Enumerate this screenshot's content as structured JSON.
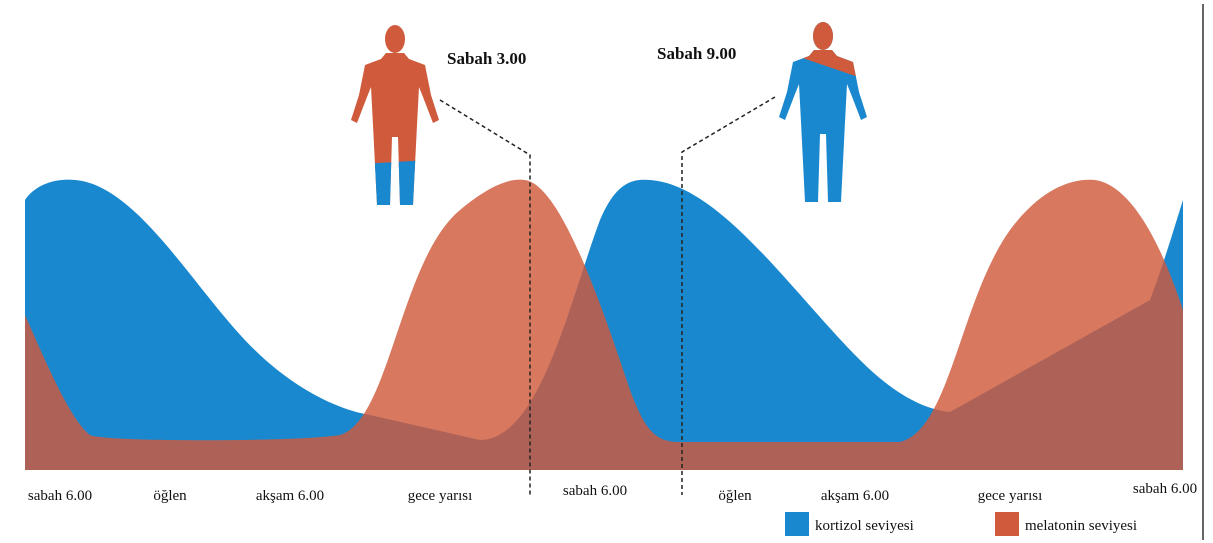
{
  "annotations": [
    "Sabah 3.00",
    "Sabah 9.00"
  ],
  "time_labels": [
    "sabah 6.00",
    "öğlen",
    "akşam 6.00",
    "gece yarısı",
    "sabah 6.00",
    "öğlen",
    "akşam 6.00",
    "gece yarısı",
    "sabah 6.00"
  ],
  "legend": [
    {
      "label": "kortizol seviyesi",
      "color": "#1a88cf"
    },
    {
      "label": "melatonin seviyesi",
      "color": "#cf5a3c"
    }
  ]
}
